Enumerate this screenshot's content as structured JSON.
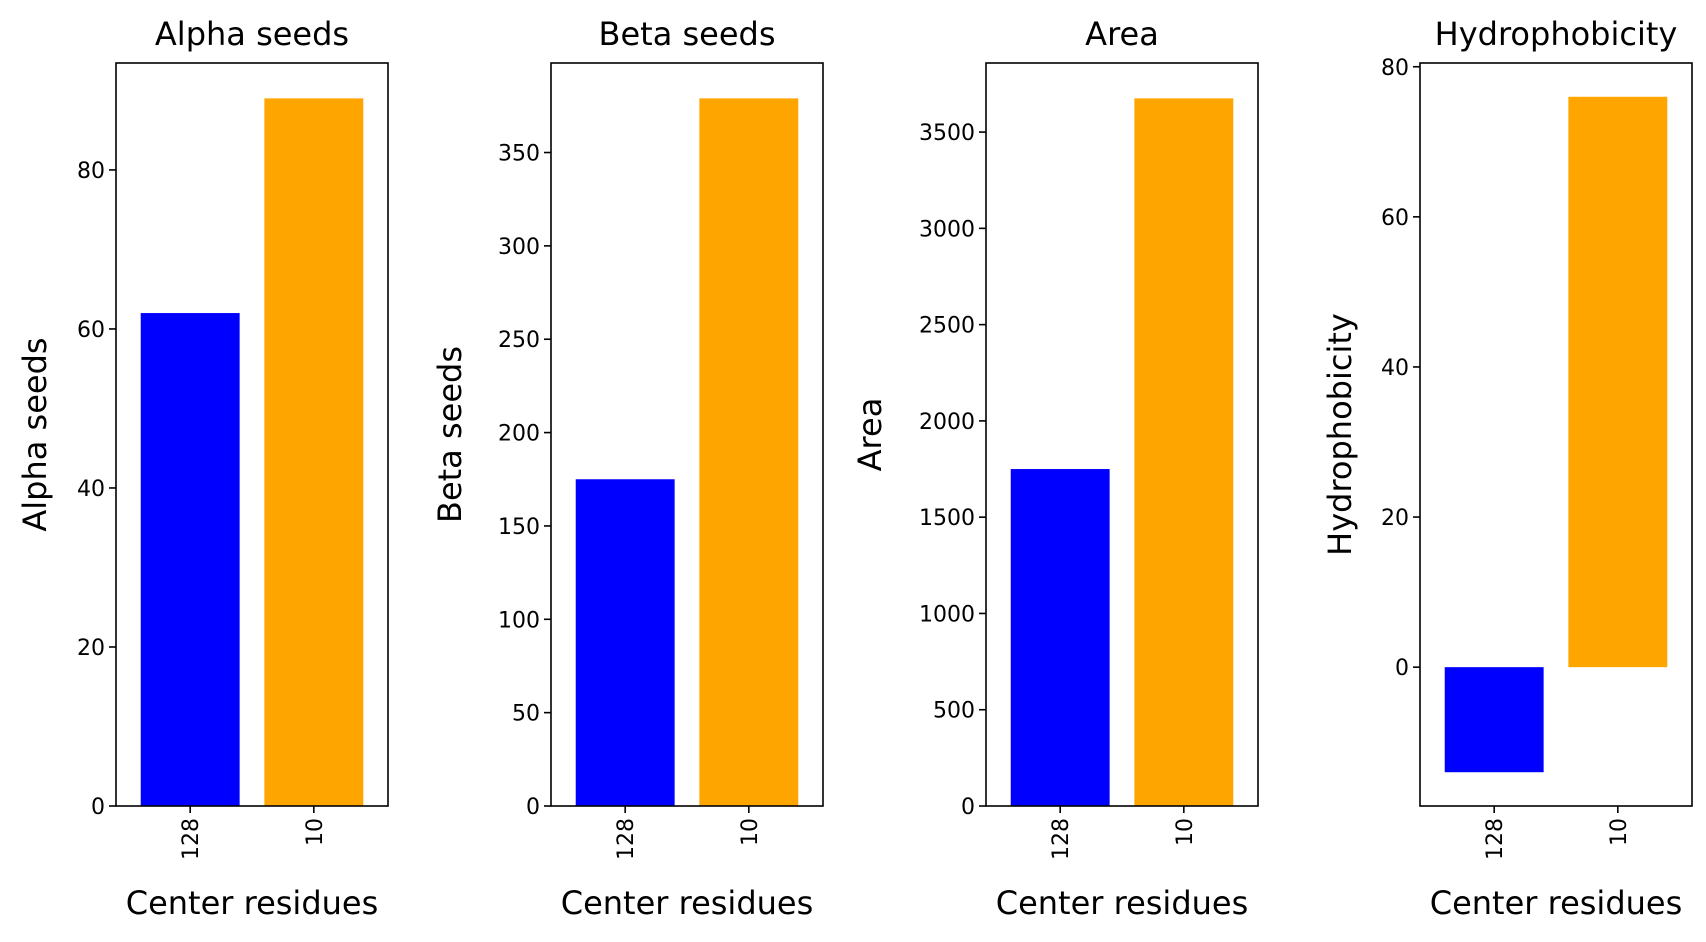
{
  "chart_data": [
    {
      "type": "bar",
      "title": "Alpha seeds",
      "xlabel": "Center residues",
      "ylabel": "Alpha seeds",
      "categories": [
        "128",
        "10"
      ],
      "values": [
        62,
        89
      ],
      "colors": [
        "#0000ff",
        "#ffa500"
      ],
      "ylim": [
        0,
        93.45
      ],
      "yticks": [
        0,
        20,
        40,
        60,
        80
      ],
      "grid": false
    },
    {
      "type": "bar",
      "title": "Beta seeds",
      "xlabel": "Center residues",
      "ylabel": "Beta seeds",
      "categories": [
        "128",
        "10"
      ],
      "values": [
        175,
        379
      ],
      "colors": [
        "#0000ff",
        "#ffa500"
      ],
      "ylim": [
        0,
        397.95
      ],
      "yticks": [
        0,
        50,
        100,
        150,
        200,
        250,
        300,
        350
      ],
      "grid": false
    },
    {
      "type": "bar",
      "title": "Area",
      "xlabel": "Center residues",
      "ylabel": "Area",
      "categories": [
        "128",
        "10"
      ],
      "values": [
        1750,
        3675
      ],
      "colors": [
        "#0000ff",
        "#ffa500"
      ],
      "ylim": [
        0,
        3858.75
      ],
      "yticks": [
        0,
        500,
        1000,
        1500,
        2000,
        2500,
        3000,
        3500
      ],
      "grid": false
    },
    {
      "type": "bar",
      "title": "Hydrophobicity",
      "xlabel": "Center residues",
      "ylabel": "Hydrophobicity",
      "categories": [
        "128",
        "10"
      ],
      "values": [
        -14,
        76
      ],
      "colors": [
        "#0000ff",
        "#ffa500"
      ],
      "ylim": [
        -18.5,
        80.5
      ],
      "yticks": [
        0,
        20,
        40,
        60,
        80
      ],
      "grid": false
    }
  ]
}
